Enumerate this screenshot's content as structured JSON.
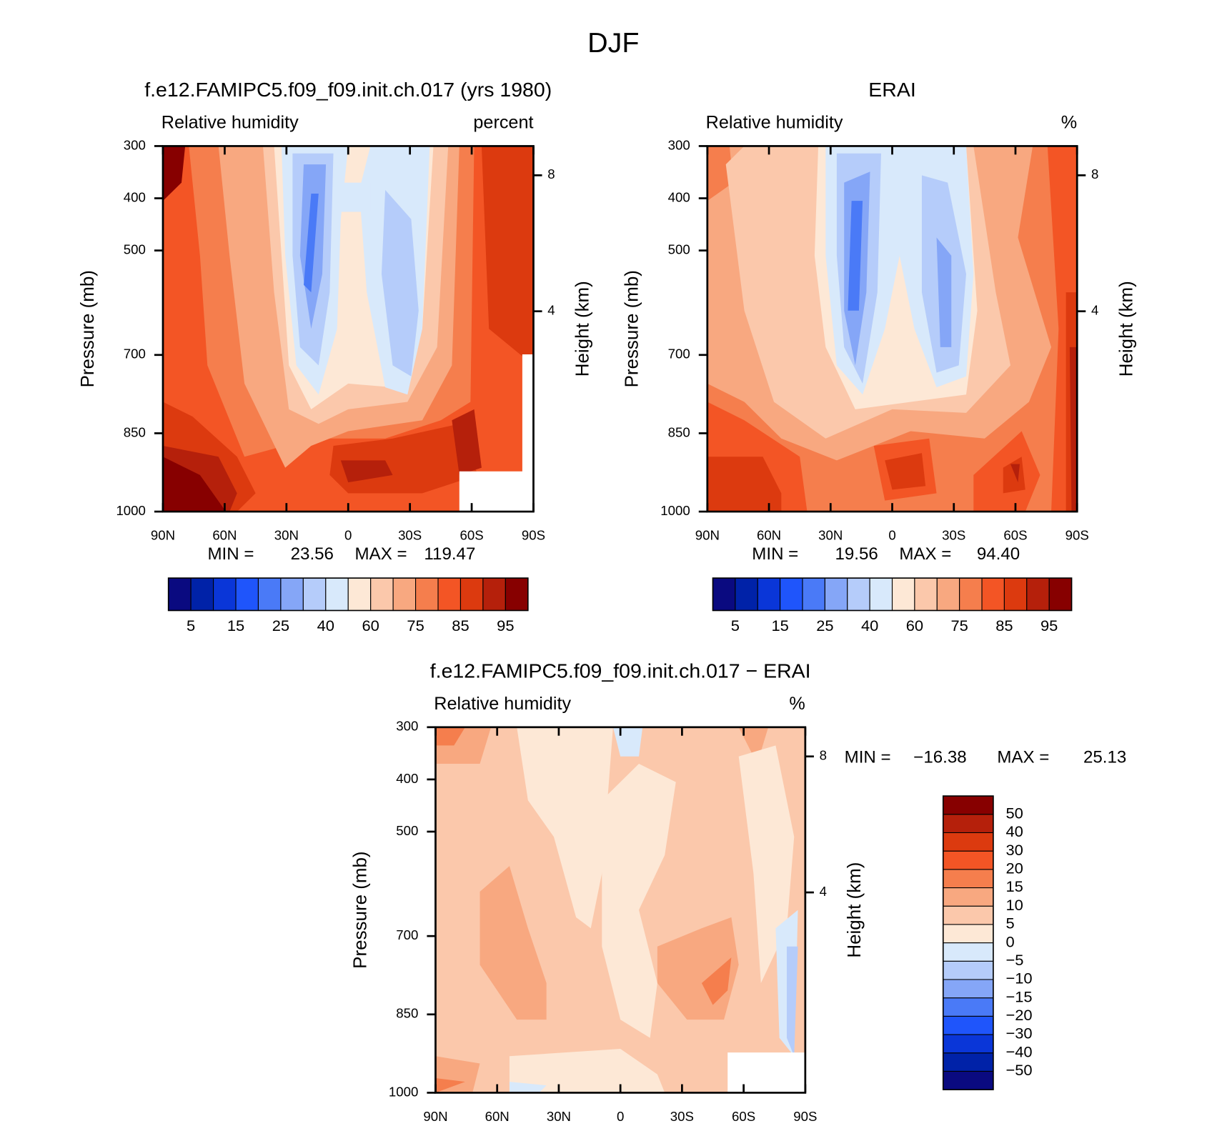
{
  "figure_title": "DJF",
  "chart_data": [
    {
      "type": "contour",
      "title": "f.e12.FAMIPC5.f09_f09.init.ch.017 (yrs 1980)",
      "subtitle": "Relative humidity",
      "units": "percent",
      "ylabel": "Pressure (mb)",
      "y2label": "Height (km)",
      "xlim": [
        90,
        -90
      ],
      "xticks": [
        {
          "value": 90,
          "label": "90N"
        },
        {
          "value": 60,
          "label": "60N"
        },
        {
          "value": 30,
          "label": "30N"
        },
        0,
        {
          "value": -30,
          "label": "30S"
        },
        {
          "value": -60,
          "label": "60S"
        },
        {
          "value": -90,
          "label": "90S"
        }
      ],
      "ylim": [
        1000,
        300
      ],
      "yticks": [
        300,
        400,
        500,
        700,
        850,
        1000
      ],
      "y2ticks": [
        8,
        4
      ],
      "min_label": "MIN =",
      "min": 23.56,
      "max_label": "MAX =",
      "max": 119.47,
      "levels": [
        5,
        15,
        25,
        40,
        60,
        75,
        85,
        95
      ],
      "colors": [
        "#0a0a80",
        "#0022a8",
        "#0a36d8",
        "#1f55fb",
        "#4a7af7",
        "#85a6f7",
        "#b5ccfa",
        "#d8e9fb",
        "#fde8d6",
        "#fbc8ab",
        "#f8a880",
        "#f57e4d",
        "#f35525",
        "#dc3a0f",
        "#b5200b",
        "#870000"
      ]
    },
    {
      "type": "contour",
      "title": "ERAI",
      "subtitle": "Relative humidity",
      "units": "%",
      "ylabel": "Pressure (mb)",
      "y2label": "Height (km)",
      "xlim": [
        90,
        -90
      ],
      "xticks": [
        {
          "value": 90,
          "label": "90N"
        },
        {
          "value": 60,
          "label": "60N"
        },
        {
          "value": 30,
          "label": "30N"
        },
        0,
        {
          "value": -30,
          "label": "30S"
        },
        {
          "value": -60,
          "label": "60S"
        },
        {
          "value": -90,
          "label": "90S"
        }
      ],
      "ylim": [
        1000,
        300
      ],
      "yticks": [
        300,
        400,
        500,
        700,
        850,
        1000
      ],
      "y2ticks": [
        8,
        4
      ],
      "min_label": "MIN =",
      "min": 19.56,
      "max_label": "MAX =",
      "max": {
        "value": 94.4,
        "label": "94.40"
      },
      "levels": [
        5,
        15,
        25,
        40,
        60,
        75,
        85,
        95
      ],
      "colors": [
        "#0a0a80",
        "#0022a8",
        "#0a36d8",
        "#1f55fb",
        "#4a7af7",
        "#85a6f7",
        "#b5ccfa",
        "#d8e9fb",
        "#fde8d6",
        "#fbc8ab",
        "#f8a880",
        "#f57e4d",
        "#f35525",
        "#dc3a0f",
        "#b5200b",
        "#870000"
      ]
    },
    {
      "type": "contour",
      "title": "f.e12.FAMIPC5.f09_f09.init.ch.017 − ERAI",
      "subtitle": "Relative humidity",
      "units": "%",
      "ylabel": "Pressure (mb)",
      "y2label": "Height (km)",
      "xlim": [
        90,
        -90
      ],
      "xticks": [
        {
          "value": 90,
          "label": "90N"
        },
        {
          "value": 60,
          "label": "60N"
        },
        {
          "value": 30,
          "label": "30N"
        },
        0,
        {
          "value": -30,
          "label": "30S"
        },
        {
          "value": -60,
          "label": "60S"
        },
        {
          "value": -90,
          "label": "90S"
        }
      ],
      "ylim": [
        1000,
        300
      ],
      "yticks": [
        300,
        400,
        500,
        700,
        850,
        1000
      ],
      "y2ticks": [
        8,
        4
      ],
      "min_label": "MIN =",
      "min": {
        "value": -16.38,
        "label": "−16.38"
      },
      "max_label": "MAX =",
      "max": 25.13,
      "levels": [
        {
          "value": -50,
          "label": "−50"
        },
        {
          "value": -40,
          "label": "−40"
        },
        {
          "value": -30,
          "label": "−30"
        },
        {
          "value": -20,
          "label": "−20"
        },
        {
          "value": -15,
          "label": "−15"
        },
        {
          "value": -10,
          "label": "−10"
        },
        {
          "value": -5,
          "label": "−5"
        },
        0,
        5,
        10,
        15,
        20,
        30,
        40,
        50
      ],
      "colors": [
        "#0a0a80",
        "#0022a8",
        "#0a36d8",
        "#1f55fb",
        "#4a7af7",
        "#85a6f7",
        "#b5ccfa",
        "#d8e9fb",
        "#fde8d6",
        "#fbc8ab",
        "#f8a880",
        "#f57e4d",
        "#f35525",
        "#dc3a0f",
        "#b5200b",
        "#870000"
      ]
    }
  ]
}
